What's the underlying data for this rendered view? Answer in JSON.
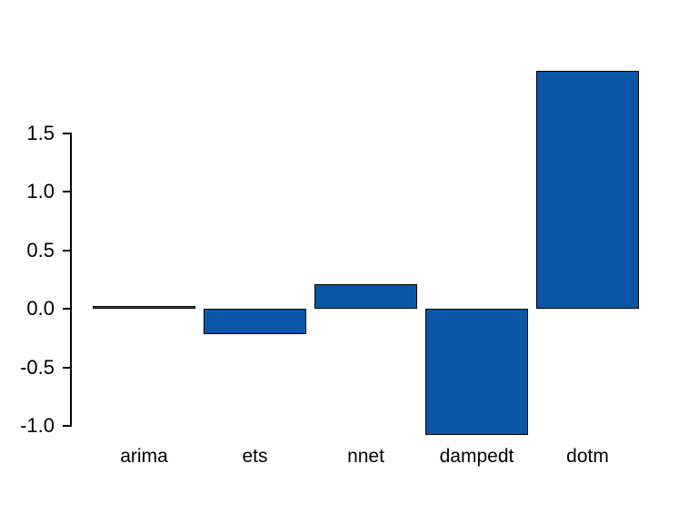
{
  "chart_data": {
    "type": "bar",
    "title": "",
    "xlabel": "",
    "ylabel": "",
    "categories": [
      "arima",
      "ets",
      "nnet",
      "dampedt",
      "dotm"
    ],
    "values": [
      0.02,
      -0.22,
      0.21,
      -1.08,
      2.03
    ],
    "ytick_labels": [
      "1.5",
      "1.0",
      "0.5",
      "0.0",
      "-0.5",
      "-1.0"
    ],
    "ytick_values": [
      1.5,
      1.0,
      0.5,
      0.0,
      -0.5,
      -1.0
    ],
    "ylim": [
      -1.0,
      1.5
    ],
    "grid": false,
    "legend": "none",
    "colors": {
      "bar_fill": "#0a57a7",
      "bar_border": "#000000",
      "axis": "#000000",
      "text": "#000000",
      "background": "#ffffff"
    }
  }
}
